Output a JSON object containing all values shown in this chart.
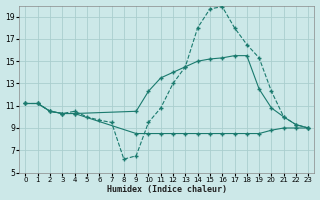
{
  "title": "",
  "xlabel": "Humidex (Indice chaleur)",
  "bg_color": "#cce8e8",
  "grid_color": "#aacece",
  "line_color": "#1a7a6e",
  "xlim": [
    -0.5,
    23.5
  ],
  "ylim": [
    5,
    20
  ],
  "yticks": [
    5,
    7,
    9,
    11,
    13,
    15,
    17,
    19
  ],
  "xticks": [
    0,
    1,
    2,
    3,
    4,
    5,
    6,
    7,
    8,
    9,
    10,
    11,
    12,
    13,
    14,
    15,
    16,
    17,
    18,
    19,
    20,
    21,
    22,
    23
  ],
  "curve_top_x": [
    0,
    1,
    2,
    3,
    4,
    5,
    6,
    7,
    8,
    9,
    10,
    11,
    12,
    13,
    14,
    15,
    16,
    17,
    18,
    19,
    20,
    21,
    22,
    23
  ],
  "curve_top_y": [
    11.2,
    11.2,
    10.5,
    10.3,
    10.5,
    10.0,
    9.7,
    9.5,
    6.2,
    6.5,
    9.5,
    10.8,
    13.0,
    14.5,
    18.0,
    19.7,
    19.9,
    18.0,
    16.5,
    15.3,
    12.3,
    10.0,
    9.3,
    9.0
  ],
  "curve_mid_x": [
    0,
    1,
    2,
    3,
    4,
    9,
    10,
    11,
    12,
    13,
    14,
    15,
    16,
    17,
    18,
    19,
    20,
    21,
    22,
    23
  ],
  "curve_mid_y": [
    11.2,
    11.2,
    10.5,
    10.3,
    10.3,
    10.5,
    12.3,
    13.5,
    14.0,
    14.5,
    15.0,
    15.2,
    15.3,
    15.5,
    15.5,
    12.5,
    10.8,
    10.0,
    9.3,
    9.0
  ],
  "curve_bot_x": [
    0,
    1,
    2,
    3,
    4,
    9,
    10,
    11,
    12,
    13,
    14,
    15,
    16,
    17,
    18,
    19,
    20,
    21,
    22,
    23
  ],
  "curve_bot_y": [
    11.2,
    11.2,
    10.5,
    10.3,
    10.3,
    8.5,
    8.5,
    8.5,
    8.5,
    8.5,
    8.5,
    8.5,
    8.5,
    8.5,
    8.5,
    8.5,
    8.8,
    9.0,
    9.0,
    9.0
  ]
}
